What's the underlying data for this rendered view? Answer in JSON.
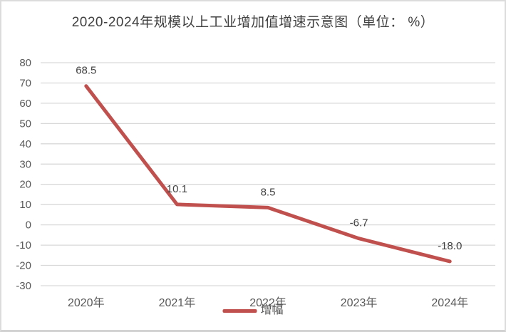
{
  "chart_data": {
    "type": "line",
    "title": "2020-2024年规模以上工业增加值增速示意图（单位： %）",
    "categories": [
      "2020年",
      "2021年",
      "2022年",
      "2023年",
      "2024年"
    ],
    "series": [
      {
        "name": "增幅",
        "values": [
          68.5,
          10.1,
          8.5,
          -6.7,
          -18.0
        ]
      }
    ],
    "data_labels": [
      "68.5",
      "10.1",
      "8.5",
      "-6.7",
      "-18.0"
    ],
    "ylim": [
      -30,
      80
    ],
    "ytick_step": 10,
    "yticks": [
      80,
      70,
      60,
      50,
      40,
      30,
      20,
      10,
      0,
      -10,
      -20,
      -30
    ],
    "grid": true,
    "legend_position": "bottom",
    "colors": {
      "series": "#c0504d",
      "gridline": "#d9d9d9",
      "axis_text": "#595959",
      "data_label": "#3f3f3f",
      "title": "#404040"
    }
  }
}
